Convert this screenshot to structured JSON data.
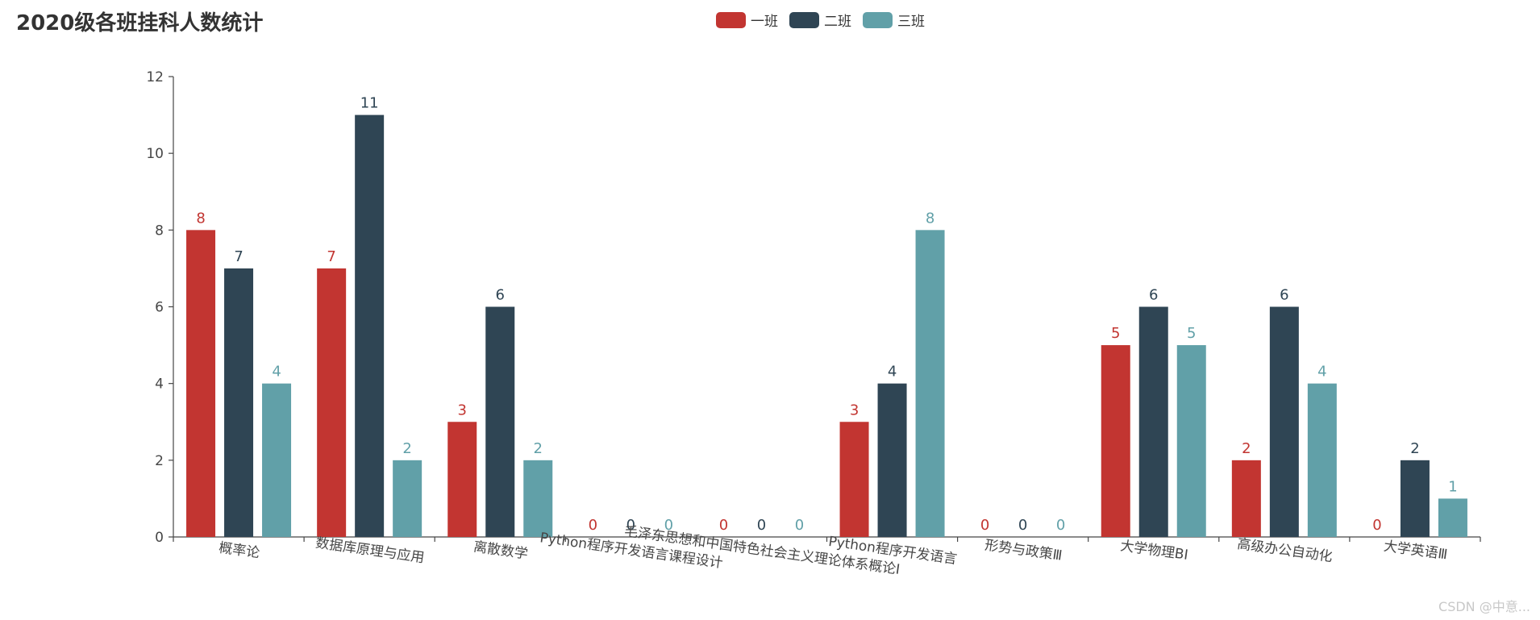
{
  "chart_data": {
    "type": "bar",
    "title": "2020级各班挂科人数统计",
    "categories": [
      "概率论",
      "数据库原理与应用",
      "离散数学",
      "Python程序开发语言课程设计",
      "毛泽东思想和中国特色社会主义理论体系概论Ⅰ",
      "Python程序开发语言",
      "形势与政策Ⅲ",
      "大学物理BⅠ",
      "高级办公自动化",
      "大学英语Ⅲ"
    ],
    "series": [
      {
        "name": "一班",
        "color": "#c23531",
        "values": [
          8,
          7,
          3,
          0,
          0,
          3,
          0,
          5,
          2,
          0
        ]
      },
      {
        "name": "二班",
        "color": "#2f4554",
        "values": [
          7,
          11,
          6,
          0,
          0,
          4,
          0,
          6,
          6,
          2
        ]
      },
      {
        "name": "三班",
        "color": "#61a0a8",
        "values": [
          4,
          2,
          2,
          0,
          0,
          8,
          0,
          5,
          4,
          1
        ]
      }
    ],
    "ylim": [
      0,
      12
    ],
    "yticks": [
      0,
      2,
      4,
      6,
      8,
      10,
      12
    ],
    "legend_position": "top-center",
    "grid": false,
    "xlabel": "",
    "ylabel": ""
  },
  "watermark": "CSDN @中意..."
}
